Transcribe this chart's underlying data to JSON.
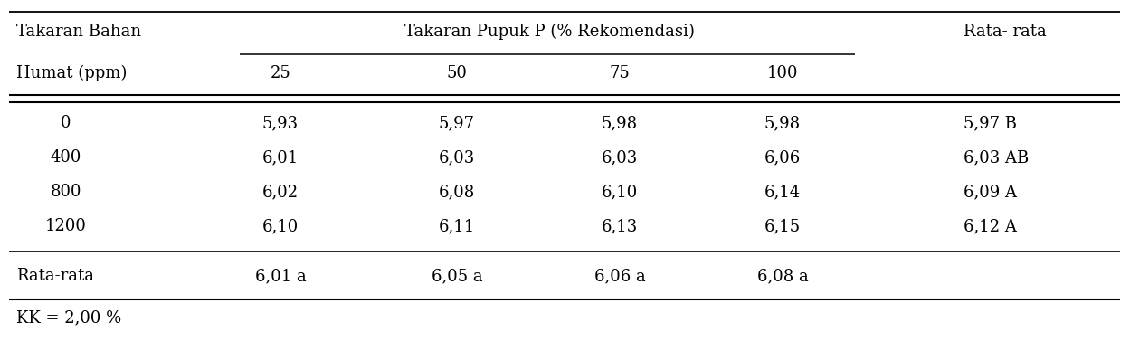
{
  "col_header_row1_left": "Takaran Bahan",
  "col_header_row1_center": "Takaran Pupuk P (% Rekomendasi)",
  "col_header_row1_right": "Rata- rata",
  "col_header_row2_left": "Humat (ppm)",
  "col_header_row2_vals": [
    "25",
    "50",
    "75",
    "100"
  ],
  "rows": [
    [
      "0",
      "5,93",
      "5,97",
      "5,98",
      "5,98",
      "5,97 B"
    ],
    [
      "400",
      "6,01",
      "6,03",
      "6,03",
      "6,06",
      "6,03 AB"
    ],
    [
      "800",
      "6,02",
      "6,08",
      "6,10",
      "6,14",
      "6,09 A"
    ],
    [
      "1200",
      "6,10",
      "6,11",
      "6,13",
      "6,15",
      "6,12 A"
    ]
  ],
  "footer_row": [
    "Rata-rata",
    "6,01 a",
    "6,05 a",
    "6,06 a",
    "6,08 a"
  ],
  "footnote": "KK = 2,00 %",
  "background_color": "#ffffff",
  "text_color": "#000000",
  "font_size": 13.0
}
